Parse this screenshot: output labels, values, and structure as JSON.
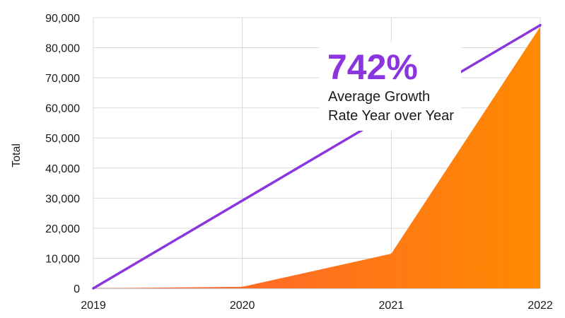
{
  "chart_data": {
    "type": "area",
    "x": [
      "2019",
      "2020",
      "2021",
      "2022"
    ],
    "series": [
      {
        "values": [
          0,
          500,
          11500,
          87000
        ],
        "color": "#ff8a00"
      }
    ],
    "trend_line": {
      "from": 0,
      "to": 87500,
      "color": "#8a35e0"
    },
    "ylabel": "Total",
    "xlabel": "",
    "ylim": [
      0,
      90000
    ],
    "y_ticks": [
      "0",
      "10,000",
      "20,000",
      "30,000",
      "40,000",
      "50,000",
      "60,000",
      "70,000",
      "80,000",
      "90,000"
    ],
    "grid": true,
    "annotation": {
      "value": "742%",
      "lines": [
        "Average Growth",
        "Rate Year over Year"
      ]
    },
    "gradient_start_color": "#ff5a3c"
  }
}
